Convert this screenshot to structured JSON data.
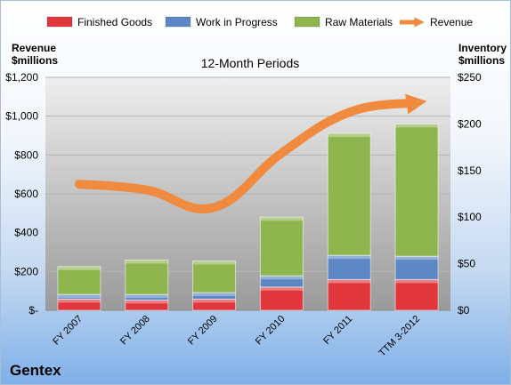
{
  "chart_data": {
    "type": "bar",
    "title": "12-Month Periods",
    "company": "Gentex",
    "left_axis_label_line1": "Revenue",
    "left_axis_label_line2": "$millions",
    "right_axis_label_line1": "Inventory",
    "right_axis_label_line2": "$millions",
    "categories": [
      "FY 2007",
      "FY 2008",
      "FY 2009",
      "FY 2010",
      "FY 2011",
      "TTM 3-2012"
    ],
    "stacked": true,
    "series": [
      {
        "name": "Finished Goods",
        "axis": "right",
        "color": "#e0363c",
        "values": [
          12,
          11,
          12,
          25,
          33,
          33
        ]
      },
      {
        "name": "Work in Progress",
        "axis": "right",
        "color": "#5c86c4",
        "values": [
          5,
          6,
          7,
          12,
          26,
          25
        ]
      },
      {
        "name": "Raw Materials",
        "axis": "right",
        "color": "#8fb54f",
        "values": [
          30,
          37,
          34,
          63,
          131,
          142
        ]
      },
      {
        "name": "Revenue",
        "axis": "left",
        "type": "line",
        "color": "#f08a3e",
        "values": [
          650,
          620,
          530,
          810,
          1020,
          1070
        ]
      }
    ],
    "left_axis": {
      "ylim": [
        0,
        1200
      ],
      "ticks": [
        "$-",
        "$200",
        "$400",
        "$600",
        "$800",
        "$1,000",
        "$1,200"
      ]
    },
    "right_axis": {
      "ylim": [
        0,
        250
      ],
      "ticks": [
        "$0",
        "$50",
        "$100",
        "$150",
        "$200",
        "$250"
      ]
    },
    "grid": true,
    "legend_position": "top"
  }
}
